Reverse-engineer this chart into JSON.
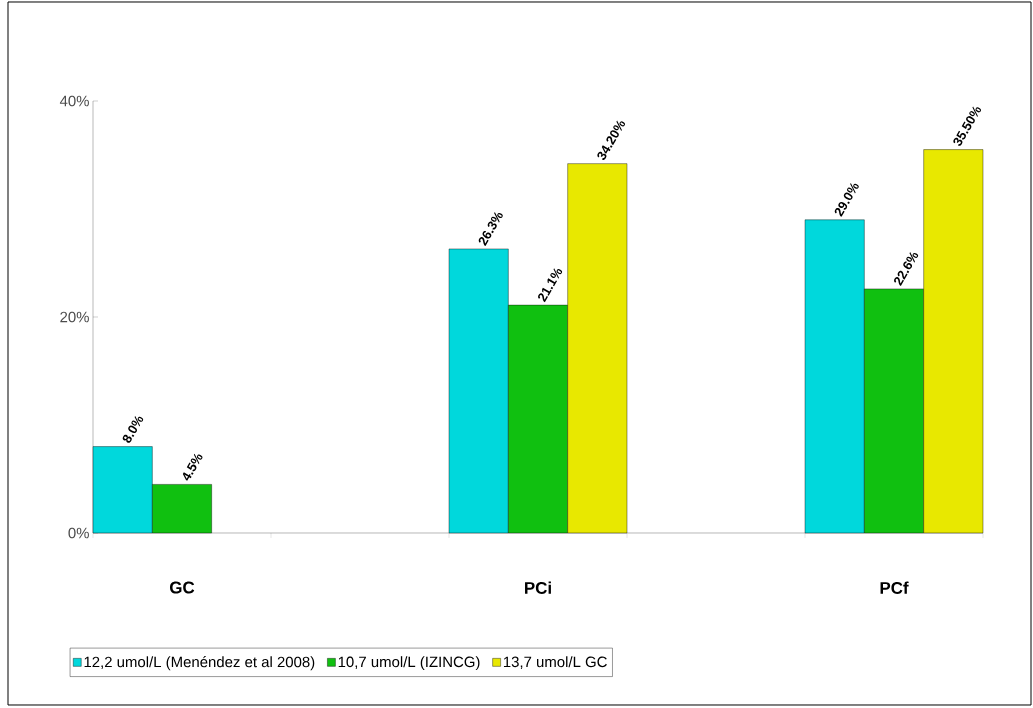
{
  "chart_data": {
    "type": "bar",
    "categories": [
      "GC",
      null,
      "PCi",
      null,
      "PCf"
    ],
    "series": [
      {
        "name": "12,2 umol/L (Menéndez  et al 2008)",
        "color": "#00d8dc",
        "values": [
          8.0,
          null,
          26.3,
          null,
          29.0
        ],
        "value_labels": [
          "8.0%",
          null,
          "26.3%",
          null,
          "29.0%"
        ]
      },
      {
        "name": "10,7 umol/L (IZINCG)",
        "color": "#10c010",
        "values": [
          4.5,
          null,
          21.1,
          null,
          22.6
        ],
        "value_labels": [
          "4.5%",
          null,
          "21.1%",
          null,
          "22.6%"
        ]
      },
      {
        "name": "13,7 umol/L GC",
        "color": "#e8e800",
        "values": [
          null,
          null,
          34.2,
          null,
          35.5
        ],
        "value_labels": [
          null,
          null,
          "34.20%",
          null,
          "35.50%"
        ]
      }
    ],
    "ylim": [
      0,
      40
    ],
    "yticks": [
      {
        "value": 0,
        "label": "0%"
      },
      {
        "value": 20,
        "label": "20%"
      },
      {
        "value": 40,
        "label": "40%"
      }
    ],
    "legend": "bottom"
  }
}
